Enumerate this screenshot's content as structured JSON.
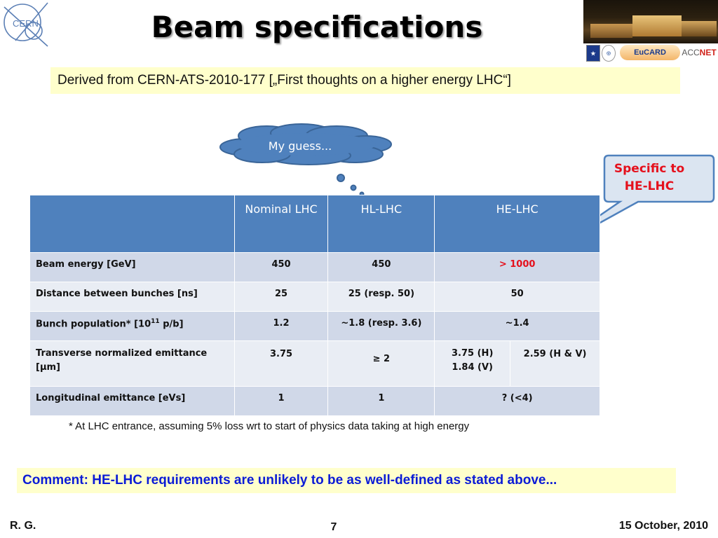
{
  "header": {
    "title": "Beam specifications",
    "cern_logo_text": "CERN",
    "partner_logos": [
      "EuCARD",
      "ACCNET"
    ]
  },
  "derived_note": "Derived from CERN-ATS-2010-177 [„First thoughts on a higher energy LHC“]",
  "cloud_text": "My guess...",
  "callout": {
    "line1": "Specific to",
    "line2": "HE-LHC"
  },
  "table": {
    "headers": [
      "",
      "Nominal LHC",
      "HL-LHC",
      "HE-LHC"
    ],
    "rows": [
      {
        "label": "Beam energy [GeV]",
        "nominal": "450",
        "hl": "450",
        "he": "> 1000"
      },
      {
        "label": "Distance between bunches [ns]",
        "nominal": "25",
        "hl": "25 (resp. 50)",
        "he": "50"
      },
      {
        "label_pre": "Bunch population* [10",
        "label_sup": "11",
        "label_post": " p/b]",
        "nominal": "1.2",
        "hl": "~1.8 (resp. 3.6)",
        "he": "~1.4"
      },
      {
        "label": "Transverse normalized emittance [μm]",
        "nominal": "3.75",
        "hl": "≥ 2",
        "he_a": "3.75 (H) 1.84 (V)",
        "he_b": "2.59 (H & V)"
      },
      {
        "label": "Longitudinal emittance [eVs]",
        "nominal": "1",
        "hl": "1",
        "he": "? (<4)"
      }
    ]
  },
  "footnote": "* At LHC entrance, assuming 5% loss wrt to start of physics data taking at high energy",
  "comment": "Comment: HE-LHC requirements are unlikely to be as well-defined as stated above...",
  "footer": {
    "author": "R. G.",
    "page": "7",
    "date": "15 October, 2010"
  },
  "colors": {
    "table_header": "#4f81bd",
    "row_dark": "#d0d8e8",
    "row_light": "#e9edf4",
    "highlight_box": "#ffffcc",
    "comment_text": "#0b1bd6",
    "red_text": "#e5101c"
  }
}
